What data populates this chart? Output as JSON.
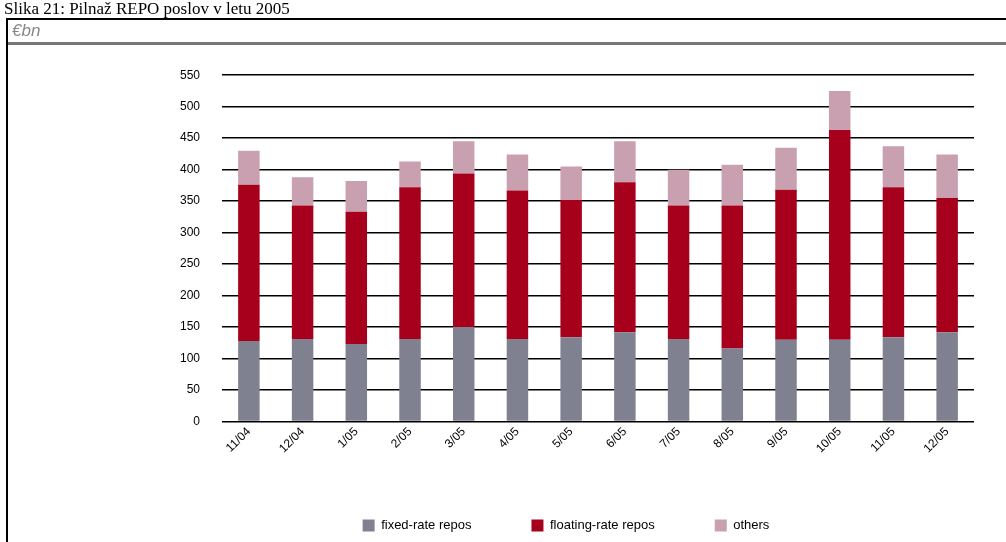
{
  "chart_data": {
    "type": "bar",
    "title": "Slika 21: Pilnaž REPO poslov v letu 2005",
    "annotations": [
      "€bn"
    ],
    "stacked": true,
    "categories": [
      "11/04",
      "12/04",
      "1/05",
      "2/05",
      "3/05",
      "4/05",
      "5/05",
      "6/05",
      "7/05",
      "8/05",
      "9/05",
      "10/05",
      "11/05",
      "12/05"
    ],
    "series": [
      {
        "name": "fixed-rate repos",
        "color": "#7f8090",
        "values": [
          128,
          131,
          123,
          131,
          150,
          131,
          134,
          142,
          131,
          116,
          130,
          130,
          134,
          142
        ]
      },
      {
        "name": "floating-rate repos",
        "color": "#a6001c",
        "values": [
          248,
          212,
          210,
          241,
          244,
          236,
          218,
          238,
          212,
          227,
          238,
          333,
          238,
          213
        ]
      },
      {
        "name": "others",
        "color": "#c9a0b0",
        "values": [
          54,
          45,
          49,
          41,
          51,
          57,
          53,
          65,
          57,
          65,
          67,
          62,
          65,
          69
        ]
      }
    ],
    "ylim": [
      0,
      550
    ],
    "yticks": [
      0,
      50,
      100,
      150,
      200,
      250,
      300,
      350,
      400,
      450,
      500,
      550
    ],
    "grid": "y",
    "legend": "bottom"
  }
}
